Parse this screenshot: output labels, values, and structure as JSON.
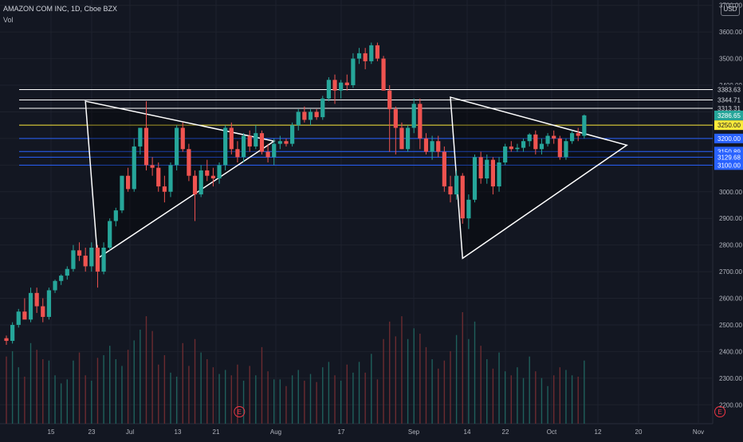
{
  "header": {
    "symbol_line": "AMAZON COM INC, 1D, Cboe BZX",
    "volume_label": "Vol",
    "currency": "USD"
  },
  "colors": {
    "background": "#131722",
    "up": "#26a69a",
    "down": "#ef5350",
    "grid": "#1e222d",
    "axis_text": "#b2b5be",
    "level_white": "#ffffff",
    "level_yellow": "#ffeb3b",
    "level_blue": "#2962ff",
    "volume_up": "#1f5f5b",
    "volume_down": "#6b2b30",
    "earnings_marker": "#f23645",
    "current_price_bg": "#26a69a"
  },
  "chart_data": {
    "type": "candlestick",
    "symbol": "AMAZON COM INC",
    "interval": "1D",
    "exchange": "Cboe BZX",
    "y_axis": {
      "ylim": [
        2150,
        3720
      ],
      "ticks": [
        2200,
        2300,
        2400,
        2500,
        2600,
        2700,
        2800,
        2900,
        3000,
        3100,
        3200,
        3300,
        3400,
        3500,
        3600,
        3700
      ],
      "tick_labels": [
        "2200.00",
        "2300.00",
        "2400.00",
        "2500.00",
        "2600.00",
        "2700.00",
        "2800.00",
        "2900.00",
        "3000.00",
        "3100.00",
        "3200.00",
        "3300.00",
        "3400.00",
        "3500.00",
        "3600.00",
        "3700.00"
      ]
    },
    "x_axis": {
      "tick_labels": [
        "15",
        "23",
        "Jul",
        "13",
        "21",
        "Aug",
        "17",
        "Sep",
        "14",
        "22",
        "Oct",
        "12",
        "20",
        "Nov"
      ]
    },
    "levels": [
      {
        "value": 3383.63,
        "label": "3383.63",
        "color": "white"
      },
      {
        "value": 3344.71,
        "label": "3344.71",
        "color": "white"
      },
      {
        "value": 3313.31,
        "label": "3313.31",
        "color": "white"
      },
      {
        "value": 3286.65,
        "label": "3286.65",
        "color": "green",
        "current": true
      },
      {
        "value": 3250.0,
        "label": "3250.00",
        "color": "yellow"
      },
      {
        "value": 3200.0,
        "label": "3200.00",
        "color": "blue"
      },
      {
        "value": 3150.89,
        "label": "3150.89",
        "color": "blue"
      },
      {
        "value": 3129.68,
        "label": "3129.68",
        "color": "blue"
      },
      {
        "value": 3100.0,
        "label": "3100.00",
        "color": "blue"
      }
    ],
    "triangles": [
      [
        [
          13,
          3340
        ],
        [
          44,
          3190
        ],
        [
          15,
          2750
        ]
      ],
      [
        [
          73,
          3355
        ],
        [
          102,
          3175
        ],
        [
          75,
          2750
        ]
      ]
    ],
    "earnings_markers": [
      {
        "index": 37,
        "label": "E"
      },
      {
        "index": 116,
        "label": "E"
      }
    ],
    "candles": [
      [
        2450,
        2460,
        2425,
        2440
      ],
      [
        2440,
        2510,
        2430,
        2500
      ],
      [
        2500,
        2560,
        2490,
        2550
      ],
      [
        2550,
        2600,
        2530,
        2520
      ],
      [
        2520,
        2640,
        2510,
        2620
      ],
      [
        2620,
        2640,
        2545,
        2570
      ],
      [
        2570,
        2600,
        2510,
        2530
      ],
      [
        2530,
        2640,
        2520,
        2630
      ],
      [
        2630,
        2670,
        2620,
        2665
      ],
      [
        2665,
        2690,
        2650,
        2685
      ],
      [
        2685,
        2720,
        2670,
        2710
      ],
      [
        2710,
        2800,
        2700,
        2780
      ],
      [
        2780,
        2810,
        2740,
        2760
      ],
      [
        2760,
        2790,
        2700,
        2720
      ],
      [
        2720,
        2810,
        2700,
        2790
      ],
      [
        2790,
        2800,
        2640,
        2700
      ],
      [
        2700,
        2810,
        2690,
        2790
      ],
      [
        2790,
        2900,
        2780,
        2890
      ],
      [
        2890,
        2940,
        2870,
        2930
      ],
      [
        2930,
        3060,
        2920,
        3060
      ],
      [
        3060,
        3090,
        3000,
        3010
      ],
      [
        3010,
        3200,
        3000,
        3170
      ],
      [
        3170,
        3240,
        3140,
        3240
      ],
      [
        3240,
        3340,
        3080,
        3100
      ],
      [
        3100,
        3130,
        3060,
        3090
      ],
      [
        3090,
        3110,
        3000,
        3020
      ],
      [
        3020,
        3060,
        2960,
        3000
      ],
      [
        3000,
        3110,
        2980,
        3100
      ],
      [
        3100,
        3250,
        3080,
        3240
      ],
      [
        3240,
        3260,
        3150,
        3160
      ],
      [
        3160,
        3180,
        3040,
        3060
      ],
      [
        3060,
        3080,
        2890,
        2990
      ],
      [
        2990,
        3100,
        2980,
        3080
      ],
      [
        3080,
        3120,
        3040,
        3060
      ],
      [
        3060,
        3090,
        3020,
        3050
      ],
      [
        3050,
        3110,
        3030,
        3100
      ],
      [
        3100,
        3250,
        3080,
        3240
      ],
      [
        3240,
        3260,
        3140,
        3160
      ],
      [
        3160,
        3190,
        3110,
        3130
      ],
      [
        3130,
        3220,
        3110,
        3210
      ],
      [
        3210,
        3230,
        3150,
        3170
      ],
      [
        3170,
        3250,
        3160,
        3220
      ],
      [
        3220,
        3230,
        3140,
        3150
      ],
      [
        3150,
        3180,
        3110,
        3130
      ],
      [
        3130,
        3200,
        3100,
        3180
      ],
      [
        3180,
        3210,
        3160,
        3190
      ],
      [
        3190,
        3200,
        3170,
        3180
      ],
      [
        3180,
        3260,
        3170,
        3250
      ],
      [
        3250,
        3310,
        3230,
        3300
      ],
      [
        3300,
        3320,
        3260,
        3270
      ],
      [
        3270,
        3310,
        3250,
        3300
      ],
      [
        3300,
        3310,
        3270,
        3280
      ],
      [
        3280,
        3360,
        3270,
        3350
      ],
      [
        3350,
        3430,
        3340,
        3420
      ],
      [
        3420,
        3440,
        3330,
        3380
      ],
      [
        3380,
        3420,
        3350,
        3410
      ],
      [
        3410,
        3440,
        3380,
        3400
      ],
      [
        3400,
        3520,
        3390,
        3500
      ],
      [
        3500,
        3540,
        3480,
        3520
      ],
      [
        3520,
        3540,
        3460,
        3490
      ],
      [
        3490,
        3560,
        3480,
        3550
      ],
      [
        3550,
        3560,
        3490,
        3500
      ],
      [
        3500,
        3510,
        3380,
        3380
      ],
      [
        3380,
        3400,
        3150,
        3310
      ],
      [
        3310,
        3320,
        3140,
        3240
      ],
      [
        3240,
        3260,
        3160,
        3160
      ],
      [
        3160,
        3250,
        3150,
        3240
      ],
      [
        3240,
        3350,
        3220,
        3330
      ],
      [
        3330,
        3350,
        3160,
        3200
      ],
      [
        3200,
        3220,
        3140,
        3150
      ],
      [
        3150,
        3210,
        3120,
        3190
      ],
      [
        3190,
        3210,
        3130,
        3150
      ],
      [
        3150,
        3170,
        3000,
        3020
      ],
      [
        3020,
        3060,
        2960,
        2990
      ],
      [
        2990,
        3080,
        2970,
        3060
      ],
      [
        3060,
        3070,
        2880,
        2900
      ],
      [
        2900,
        2990,
        2860,
        2970
      ],
      [
        2970,
        3140,
        2960,
        3130
      ],
      [
        3130,
        3150,
        3030,
        3050
      ],
      [
        3050,
        3140,
        3030,
        3120
      ],
      [
        3120,
        3130,
        2990,
        3020
      ],
      [
        3020,
        3130,
        3000,
        3110
      ],
      [
        3110,
        3180,
        3100,
        3170
      ],
      [
        3170,
        3190,
        3150,
        3160
      ],
      [
        3160,
        3180,
        3150,
        3165
      ],
      [
        3165,
        3200,
        3150,
        3190
      ],
      [
        3190,
        3220,
        3170,
        3215
      ],
      [
        3215,
        3230,
        3140,
        3160
      ],
      [
        3160,
        3200,
        3140,
        3180
      ],
      [
        3180,
        3220,
        3170,
        3210
      ],
      [
        3210,
        3230,
        3180,
        3200
      ],
      [
        3200,
        3210,
        3120,
        3130
      ],
      [
        3130,
        3200,
        3120,
        3190
      ],
      [
        3190,
        3230,
        3180,
        3220
      ],
      [
        3220,
        3240,
        3190,
        3210
      ],
      [
        3210,
        3290,
        3200,
        3286.65
      ]
    ],
    "volumes_m": [
      5.0,
      5.4,
      4.2,
      3.5,
      6.0,
      5.5,
      4.8,
      4.7,
      3.6,
      3.0,
      3.3,
      4.7,
      5.3,
      3.6,
      3.2,
      4.9,
      5.1,
      5.8,
      4.8,
      4.3,
      5.5,
      6.2,
      7.0,
      8.0,
      6.9,
      4.4,
      5.1,
      3.8,
      3.5,
      6.0,
      4.3,
      6.3,
      5.3,
      4.8,
      4.2,
      3.7,
      4.0,
      3.6,
      4.4,
      3.2,
      4.3,
      3.6,
      5.7,
      3.9,
      3.3,
      3.3,
      2.8,
      3.6,
      4.0,
      3.2,
      3.7,
      3.1,
      4.2,
      4.6,
      3.6,
      3.2,
      4.4,
      3.8,
      4.6,
      3.8,
      5.2,
      3.3,
      6.3,
      7.6,
      6.5,
      8.0,
      6.3,
      7.1,
      6.7,
      5.7,
      4.8,
      4.1,
      4.7,
      5.4,
      6.6,
      8.3,
      6.3,
      7.6,
      5.8,
      4.8,
      4.1,
      5.3,
      3.9,
      3.6,
      4.2,
      3.4,
      5.0,
      3.9,
      3.4,
      2.8,
      3.6,
      4.2,
      4.0,
      3.6,
      3.5,
      4.7
    ]
  }
}
